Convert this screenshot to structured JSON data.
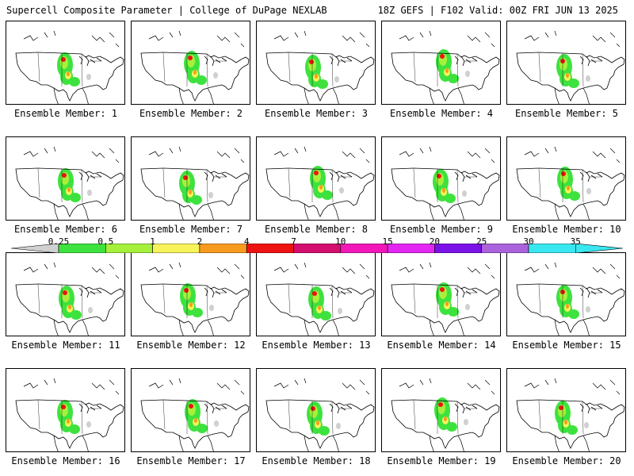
{
  "header": {
    "title": "Supercell Composite Parameter | College of DuPage NEXLAB",
    "run_info": "18Z GEFS | F102 Valid: 00Z FRI JUN 13 2025"
  },
  "member_label_prefix": "Ensemble Member: ",
  "members": [
    1,
    2,
    3,
    4,
    5,
    6,
    7,
    8,
    9,
    10,
    11,
    12,
    13,
    14,
    15,
    16,
    17,
    18,
    19,
    20
  ],
  "colorbar": {
    "ticks": [
      "0.25",
      "0.5",
      "1",
      "2",
      "4",
      "7",
      "10",
      "15",
      "20",
      "25",
      "30",
      "35"
    ],
    "colors": [
      "#d0d0d0",
      "#3ee23e",
      "#a6f03c",
      "#f7f35a",
      "#f79a1e",
      "#ee1313",
      "#d40e6f",
      "#f117b8",
      "#e326f2",
      "#7b12e8",
      "#ab63dd",
      "#38e7ef"
    ]
  }
}
